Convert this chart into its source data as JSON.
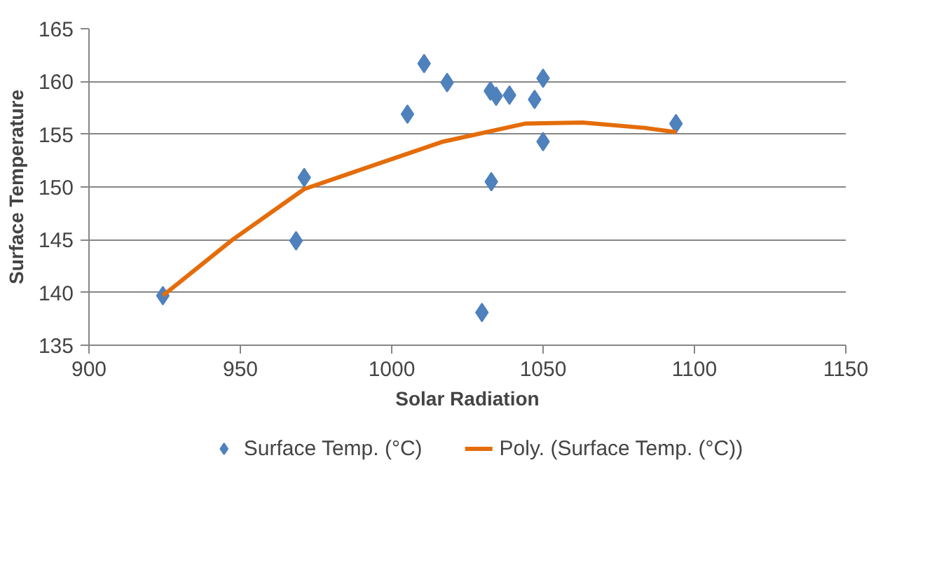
{
  "chart_data": {
    "type": "scatter",
    "xlabel": "Solar Radiation",
    "ylabel": "Surface Temperature",
    "xlim": [
      900,
      1150
    ],
    "xticks": [
      900,
      950,
      1000,
      1050,
      1100,
      1150
    ],
    "ylim": [
      135,
      165
    ],
    "yticks": [
      135,
      140,
      145,
      150,
      155,
      160,
      165
    ],
    "grid": "y",
    "legend": "bottom",
    "marker": "diamond",
    "series": [
      {
        "name": "Surface Temp. (°C)",
        "color": "#4f81bd",
        "type": "scatter",
        "x": [
          924.4,
          968.4,
          971.1,
          1005.2,
          1010.7,
          1018.3,
          1032.6,
          1034.5,
          1038.9,
          1032.9,
          1029.8,
          1047.2,
          1050.0,
          1050.0,
          1093.9
        ],
        "values": [
          139.7,
          144.9,
          150.9,
          156.9,
          161.7,
          159.9,
          159.1,
          158.6,
          158.7,
          150.5,
          138.1,
          158.3,
          160.3,
          154.3,
          156.0
        ]
      },
      {
        "name": "Poly. (Surface Temp. (°C))",
        "color": "#e46c0a",
        "type": "line",
        "marker": "none",
        "line_style": "solid",
        "x": [
          924.4,
          947.4,
          971.1,
          996.5,
          1017,
          1044,
          1063,
          1083.5,
          1094
        ],
        "values": [
          139.7,
          145.0,
          149.8,
          152.3,
          154.3,
          156.0,
          156.1,
          155.6,
          155.2
        ]
      }
    ]
  }
}
